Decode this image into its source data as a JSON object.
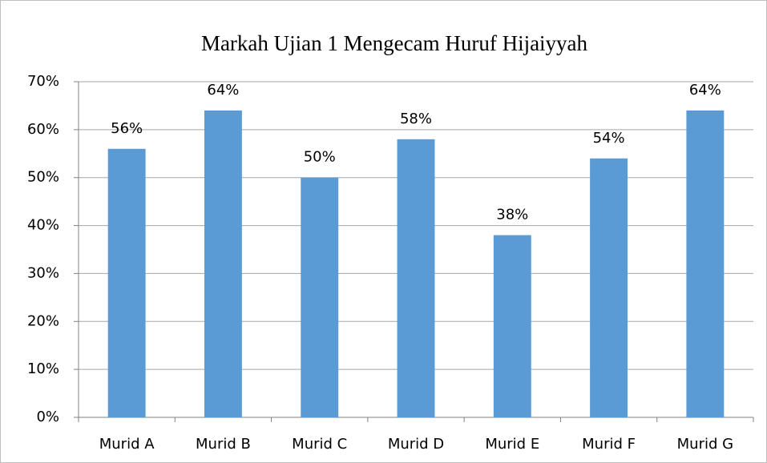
{
  "chart_data": {
    "type": "bar",
    "title": "Markah Ujian 1 Mengecam Huruf Hijaiyyah",
    "categories": [
      "Murid A",
      "Murid B",
      "Murid C",
      "Murid D",
      "Murid E",
      "Murid F",
      "Murid G"
    ],
    "values": [
      56,
      64,
      50,
      58,
      38,
      54,
      64
    ],
    "value_labels": [
      "56%",
      "64%",
      "50%",
      "58%",
      "38%",
      "54%",
      "64%"
    ],
    "color": "#5b9bd5",
    "ylim": [
      0,
      70
    ],
    "yticks": [
      {
        "value": 0,
        "label": "0%"
      },
      {
        "value": 10,
        "label": "10%"
      },
      {
        "value": 20,
        "label": "20%"
      },
      {
        "value": 30,
        "label": "30%"
      },
      {
        "value": 40,
        "label": "40%"
      },
      {
        "value": 50,
        "label": "50%"
      },
      {
        "value": 60,
        "label": "60%"
      },
      {
        "value": 70,
        "label": "70%"
      }
    ],
    "grid": true
  }
}
